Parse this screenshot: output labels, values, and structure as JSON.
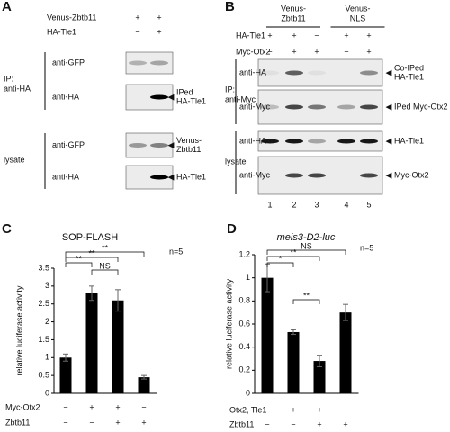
{
  "panels": [
    {
      "letter": "A",
      "conditions": [
        {
          "name": "Venus-Zbtb11",
          "lanes": [
            "+",
            "+"
          ]
        },
        {
          "name": "HA-Tle1",
          "lanes": [
            "−",
            "+"
          ]
        }
      ],
      "sections": [
        {
          "label": [
            "IP:",
            "anti-HA"
          ],
          "blots": [
            {
              "antibody": "anti-GFP"
            },
            {
              "antibody": "anti-HA",
              "band_label": [
                "IPed",
                "HA-Tle1"
              ]
            }
          ]
        },
        {
          "label": [
            "lysate"
          ],
          "blots": [
            {
              "antibody": "anti-GFP",
              "band_label": [
                "Venus-",
                "Zbtb11"
              ]
            },
            {
              "antibody": "anti-HA",
              "band_label": [
                "HA-Tle1"
              ]
            }
          ]
        }
      ]
    },
    {
      "letter": "B",
      "groups": [
        [
          "Venus-",
          "Zbtb11"
        ],
        [
          "Venus-",
          "NLS"
        ]
      ],
      "conditions": [
        {
          "name": "HA-Tle1",
          "lanes": [
            "+",
            "+",
            "−",
            "+",
            "+"
          ]
        },
        {
          "name": "Myc-Otx2",
          "lanes": [
            "−",
            "+",
            "+",
            "−",
            "+"
          ]
        }
      ],
      "sections": [
        {
          "label": [
            "IP:",
            "anti-Myc"
          ],
          "blots": [
            {
              "antibody": "anti-HA",
              "band_label": [
                "Co-IPed",
                "HA-Tle1"
              ]
            },
            {
              "antibody": "anti-Myc",
              "band_label": [
                "IPed Myc-Otx2"
              ]
            }
          ]
        },
        {
          "label": [
            "lysate"
          ],
          "blots": [
            {
              "antibody": "anti-HA",
              "band_label": [
                "HA-Tle1"
              ]
            },
            {
              "antibody": "anti-Myc",
              "band_label": [
                "Myc-Otx2"
              ]
            }
          ]
        }
      ],
      "lane_numbers": [
        "1",
        "2",
        "3",
        "4",
        "5"
      ]
    }
  ],
  "chart_data": [
    {
      "type": "bar",
      "letter": "C",
      "title": "SOP-FLASH",
      "ylabel": "relative luciferase activity",
      "values": [
        1.0,
        2.8,
        2.6,
        0.45
      ],
      "errors": [
        0.1,
        0.2,
        0.3,
        0.05
      ],
      "color": "#000000",
      "ylim": [
        0,
        3.5
      ],
      "yticks": [
        0,
        0.5,
        1,
        1.5,
        2,
        2.5,
        3,
        3.5
      ],
      "rows": [
        {
          "name": "Myc-Otx2",
          "signs": [
            "−",
            "+",
            "+",
            "−"
          ]
        },
        {
          "name": "Zbtb11",
          "signs": [
            "−",
            "−",
            "+",
            "+"
          ]
        }
      ],
      "annotations": [
        "**",
        "**",
        "NS",
        "**"
      ],
      "note": "n=5"
    },
    {
      "type": "bar",
      "letter": "D",
      "title": "meis3-D2-luc",
      "ylabel": "relative luciferase activity",
      "values": [
        1.0,
        0.53,
        0.28,
        0.7
      ],
      "errors": [
        0.12,
        0.02,
        0.05,
        0.07
      ],
      "color": "#000000",
      "ylim": [
        0,
        1.2
      ],
      "yticks": [
        0,
        0.2,
        0.4,
        0.6,
        0.8,
        1,
        1.2
      ],
      "rows": [
        {
          "name": "Otx2, Tle1",
          "signs": [
            "−",
            "+",
            "+",
            "−"
          ]
        },
        {
          "name": "Zbtb11",
          "signs": [
            "−",
            "−",
            "+",
            "+"
          ]
        }
      ],
      "annotations": [
        "*",
        "**",
        "**",
        "NS"
      ],
      "note": "n=5"
    }
  ]
}
